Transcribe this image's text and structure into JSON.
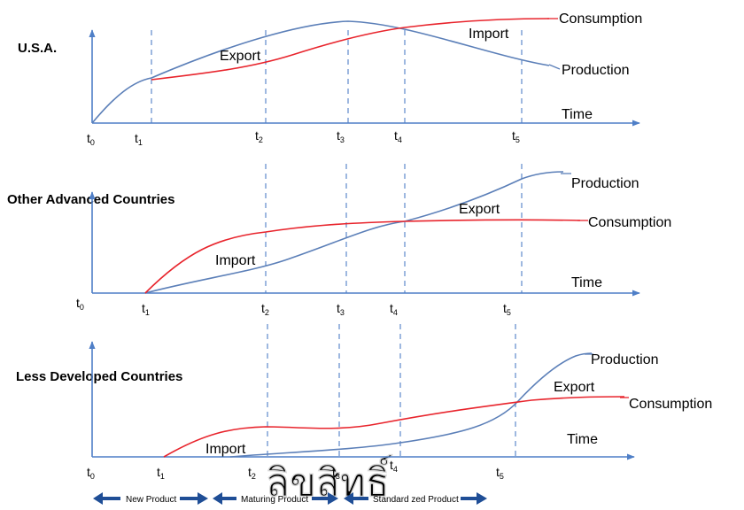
{
  "panels": [
    {
      "title": "U.S.A.",
      "time_label": "Time",
      "production_label": "Production",
      "consumption_label": "Consumption",
      "export_label": "Export",
      "import_label": "Import",
      "ticks": [
        {
          "base": "t",
          "sub": "0"
        },
        {
          "base": "t",
          "sub": "1"
        },
        {
          "base": "t",
          "sub": "2"
        },
        {
          "base": "t",
          "sub": "3"
        },
        {
          "base": "t",
          "sub": "4"
        },
        {
          "base": "t",
          "sub": "5"
        }
      ]
    },
    {
      "title": "Other Advanced Countries",
      "time_label": "Time",
      "production_label": "Production",
      "consumption_label": "Consumption",
      "export_label": "Export",
      "import_label": "Import",
      "ticks": [
        {
          "base": "t",
          "sub": "0"
        },
        {
          "base": "t",
          "sub": "1"
        },
        {
          "base": "t",
          "sub": "2"
        },
        {
          "base": "t",
          "sub": "3"
        },
        {
          "base": "t",
          "sub": "4"
        },
        {
          "base": "t",
          "sub": "5"
        }
      ]
    },
    {
      "title": "Less Developed Countries",
      "time_label": "Time",
      "production_label": "Production",
      "consumption_label": "Consumption",
      "export_label": "Export",
      "import_label": "Import",
      "ticks": [
        {
          "base": "t",
          "sub": "0"
        },
        {
          "base": "t",
          "sub": "1"
        },
        {
          "base": "t",
          "sub": "2"
        },
        {
          "base": "t",
          "sub": "3"
        },
        {
          "base": "t",
          "sub": "4"
        },
        {
          "base": "t",
          "sub": "5"
        }
      ]
    }
  ],
  "stages": [
    "New Product",
    "Maturing Product",
    "Standard zed Product"
  ],
  "watermark": "ลิขสิทธิ์",
  "colors": {
    "axis": "#4f7fc7",
    "production": "#5b7fb8",
    "consumption": "#e8242c",
    "stage_arrow": "#1f4e96"
  }
}
